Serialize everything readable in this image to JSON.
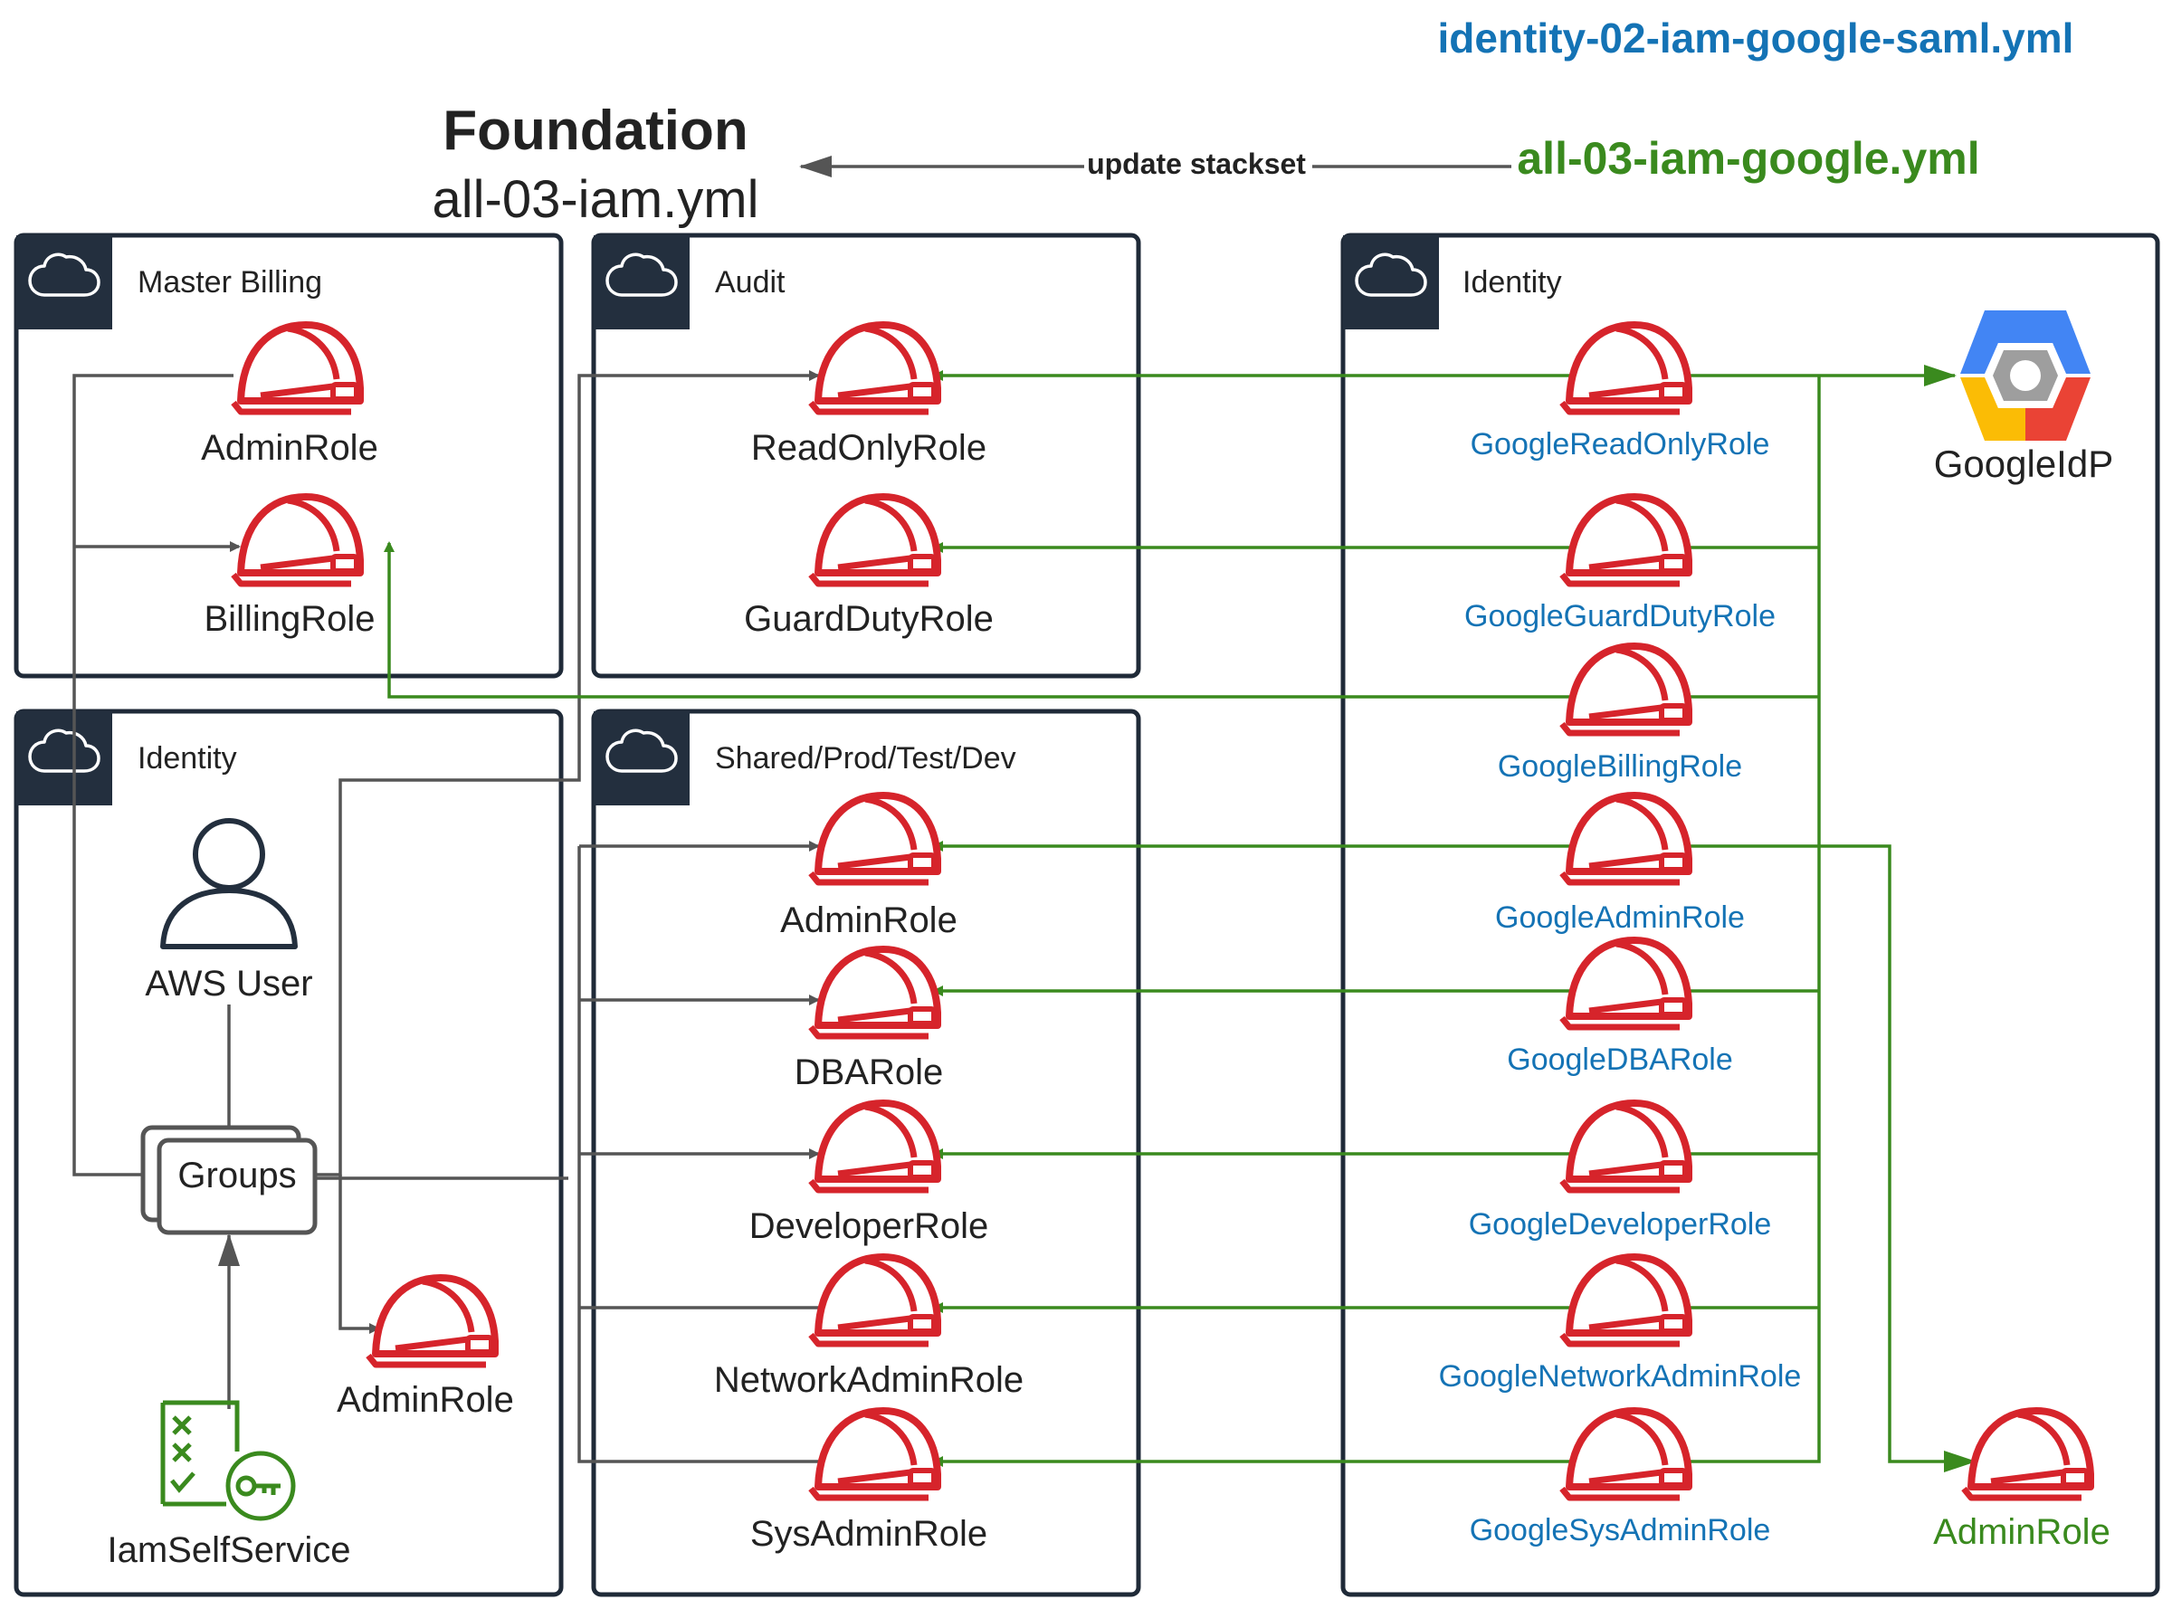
{
  "header": {
    "saml_file": "identity-02-iam-google-saml.yml",
    "foundation_title": "Foundation",
    "foundation_file": "all-03-iam.yml",
    "update_label": "update stackset",
    "google_file": "all-03-iam-google.yml"
  },
  "accounts": {
    "master_billing": {
      "title": "Master Billing",
      "roles": [
        "AdminRole",
        "BillingRole"
      ]
    },
    "audit": {
      "title": "Audit",
      "roles": [
        "ReadOnlyRole",
        "GuardDutyRole"
      ]
    },
    "identity_left": {
      "title": "Identity",
      "user_label": "AWS User",
      "groups_label": "Groups",
      "admin_role": "AdminRole",
      "self_service": "IamSelfService"
    },
    "workloads": {
      "title": "Shared/Prod/Test/Dev",
      "roles": [
        "AdminRole",
        "DBARole",
        "DeveloperRole",
        "NetworkAdminRole",
        "SysAdminRole"
      ]
    },
    "identity_right": {
      "title": "Identity",
      "google_roles": [
        "GoogleReadOnlyRole",
        "GoogleGuardDutyRole",
        "GoogleBillingRole",
        "GoogleAdminRole",
        "GoogleDBARole",
        "GoogleDeveloperRole",
        "GoogleNetworkAdminRole",
        "GoogleSysAdminRole"
      ],
      "idp_label": "GoogleIdP",
      "admin_role": "AdminRole"
    }
  },
  "icons": {
    "account": "cloud-icon",
    "role": "iam-role-helmet-icon",
    "user": "user-icon",
    "groups": "groups-icon",
    "self_service": "iam-self-service-icon",
    "idp": "google-cloud-icon"
  },
  "colors": {
    "dark": "#232f3e",
    "role_red": "#d6242b",
    "green": "#3a8a1e",
    "blue": "#1473b5",
    "gray": "#555555"
  }
}
